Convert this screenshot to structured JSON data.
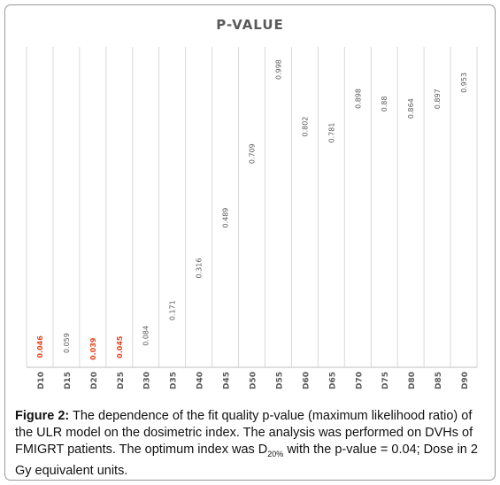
{
  "chart_data": {
    "type": "bar",
    "title": "P-VALUE",
    "categories": [
      "D10",
      "D15",
      "D20",
      "D25",
      "D30",
      "D35",
      "D40",
      "D45",
      "D50",
      "D55",
      "D60",
      "D65",
      "D70",
      "D75",
      "D80",
      "D85",
      "D90"
    ],
    "values": [
      0.046,
      0.059,
      0.039,
      0.045,
      0.084,
      0.171,
      0.316,
      0.489,
      0.709,
      0.998,
      0.802,
      0.781,
      0.898,
      0.88,
      0.864,
      0.897,
      0.953
    ],
    "labels": [
      "0.046",
      "0.059",
      "0.039",
      "0.045",
      "0.084",
      "0.171",
      "0.316",
      "0.489",
      "0.709",
      "0.998",
      "0.802",
      "0.781",
      "0.898",
      "0.88",
      "0.864",
      "0.897",
      "0.953"
    ],
    "highlight_indices": [
      0,
      2,
      3
    ],
    "ylim": [
      0,
      1.1
    ],
    "grid": "vertical",
    "colors": {
      "label": "#595959",
      "highlight": "#e8401c",
      "grid": "#d9d9d9",
      "axis": "#bfbfbf"
    }
  },
  "caption": {
    "label": "Figure 2:",
    "part1": " The dependence of the fit quality p-value (maximum likelihood ratio) of the ULR model on the dosimetric index. The analysis was performed on DVHs of FMIGRT patients. The optimum index was D",
    "subscript": "20%",
    "part2": " with the p-value = 0.04; Dose in 2 Gy equivalent units."
  }
}
